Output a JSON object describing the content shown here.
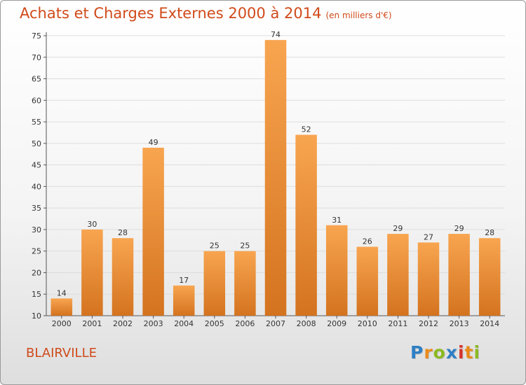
{
  "chart_data": {
    "type": "bar",
    "title": "Achats et Charges Externes 2000 à 2014",
    "subtitle": "(en milliers d'€)",
    "categories": [
      "2000",
      "2001",
      "2002",
      "2003",
      "2004",
      "2005",
      "2006",
      "2007",
      "2008",
      "2009",
      "2010",
      "2011",
      "2012",
      "2013",
      "2014"
    ],
    "values": [
      14,
      30,
      28,
      49,
      17,
      25,
      25,
      74,
      52,
      31,
      26,
      29,
      27,
      29,
      28
    ],
    "ylim": [
      10,
      75
    ],
    "yticks": [
      10,
      15,
      20,
      25,
      30,
      35,
      40,
      45,
      50,
      55,
      60,
      65,
      70,
      75
    ],
    "grid": "horizontal",
    "colors": {
      "bar_top": "#f8a550",
      "bar_bottom": "#d4731f",
      "grid": "#dddddd",
      "title": "#d04a1a"
    }
  },
  "commune": "BLAIRVILLE",
  "logo": {
    "letters": [
      "P",
      "r",
      "o",
      "x",
      "i",
      "t",
      "i"
    ],
    "colors": [
      "#2e7fc4",
      "#e98b1b",
      "#8bb921",
      "#2e7fc4",
      "#d8322b",
      "#e98b1b",
      "#8bb921"
    ]
  }
}
